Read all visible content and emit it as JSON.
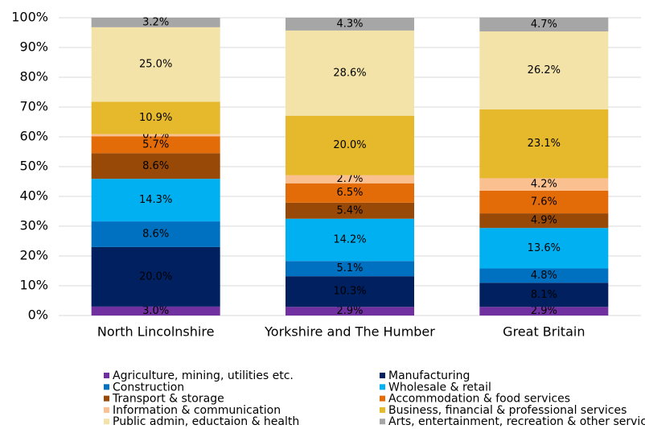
{
  "chart_data": {
    "type": "stacked_bar",
    "categories": [
      "North Lincolnshire",
      "Yorkshire and The Humber",
      "Great Britain"
    ],
    "series": [
      {
        "name": "Agriculture, mining, utilities etc.",
        "color": "#7030a0",
        "values": [
          3.0,
          2.9,
          2.9
        ],
        "value_labels": [
          "3.0%",
          "2.9%",
          "2.9%"
        ]
      },
      {
        "name": "Manufacturing",
        "color": "#002060",
        "values": [
          20.0,
          10.3,
          8.1
        ],
        "value_labels": [
          "20.0%",
          "10.3%",
          "8.1%"
        ]
      },
      {
        "name": "Construction",
        "color": "#0070c0",
        "values": [
          8.6,
          5.1,
          4.8
        ],
        "value_labels": [
          "8.6%",
          "5.1%",
          "4.8%"
        ]
      },
      {
        "name": "Wholesale & retail",
        "color": "#00b0f0",
        "values": [
          14.3,
          14.2,
          13.6
        ],
        "value_labels": [
          "14.3%",
          "14.2%",
          "13.6%"
        ]
      },
      {
        "name": "Transport & storage",
        "color": "#984807",
        "values": [
          8.6,
          5.4,
          4.9
        ],
        "value_labels": [
          "8.6%",
          "5.4%",
          "4.9%"
        ]
      },
      {
        "name": "Accommodation & food services",
        "color": "#e36c09",
        "values": [
          5.7,
          6.5,
          7.6
        ],
        "value_labels": [
          "5.7%",
          "6.5%",
          "7.6%"
        ]
      },
      {
        "name": "Information & communication",
        "color": "#fac090",
        "values": [
          0.7,
          2.7,
          4.2
        ],
        "value_labels": [
          "0.7%",
          "2.7%",
          "4.2%"
        ]
      },
      {
        "name": "Business, financial & professional services",
        "color": "#e6b92d",
        "values": [
          10.9,
          20.0,
          23.1
        ],
        "value_labels": [
          "10.9%",
          "20.0%",
          "23.1%"
        ]
      },
      {
        "name": "Public admin, eductaion & health",
        "color": "#f3e3a9",
        "values": [
          25.0,
          28.6,
          26.2
        ],
        "value_labels": [
          "25.0%",
          "28.6%",
          "26.2%"
        ]
      },
      {
        "name": "Arts, entertainment, recreation & other services",
        "color": "#a6a6a6",
        "values": [
          3.2,
          4.3,
          4.7
        ],
        "value_labels": [
          "3.2%",
          "4.3%",
          "4.7%"
        ]
      }
    ],
    "ylim": [
      0,
      100
    ],
    "yticks": [
      {
        "value": 0,
        "label": "0%"
      },
      {
        "value": 10,
        "label": "10%"
      },
      {
        "value": 20,
        "label": "20%"
      },
      {
        "value": 30,
        "label": "30%"
      },
      {
        "value": 40,
        "label": "40%"
      },
      {
        "value": 50,
        "label": "50%"
      },
      {
        "value": 60,
        "label": "60%"
      },
      {
        "value": 70,
        "label": "70%"
      },
      {
        "value": 80,
        "label": "80%"
      },
      {
        "value": 90,
        "label": "90%"
      },
      {
        "value": 100,
        "label": "100%"
      }
    ],
    "grid": true,
    "legend": "bottom"
  }
}
